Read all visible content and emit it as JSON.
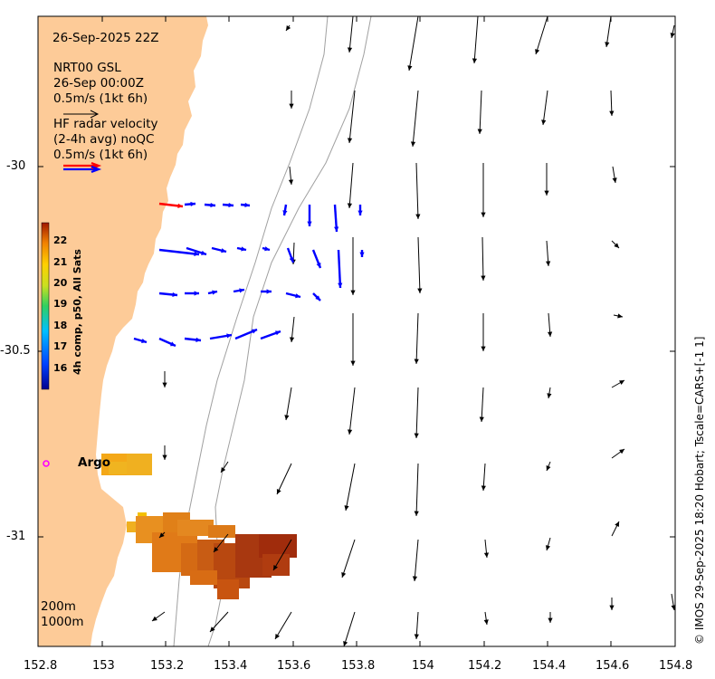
{
  "map": {
    "lon_range": [
      152.8,
      154.8
    ],
    "lat_range": [
      -31.3,
      -29.6
    ],
    "lon_ticks": [
      "152.8",
      "153",
      "153.2",
      "153.4",
      "153.6",
      "153.8",
      "154",
      "154.2",
      "154.4",
      "154.6",
      "154.8"
    ],
    "lat_ticks": [
      "-30",
      "-30.5",
      "-31"
    ],
    "land_color": "#fdcb98",
    "isobath_color": "#a0a0a0"
  },
  "annotations": {
    "date": "26-Sep-2025 22Z",
    "model_name": "NRT00 GSL",
    "model_time": "26-Sep 00:00Z",
    "model_scale": "0.5m/s (1kt 6h)",
    "radar_line1": "HF radar velocity",
    "radar_line2": "(2-4h avg) noQC",
    "radar_scale": "0.5m/s (1kt 6h)",
    "depth_200": "200m",
    "depth_1000": "1000m"
  },
  "argo": {
    "label": "Argo",
    "color": "#ff00ff"
  },
  "colorbar": {
    "label": "4h comp, p50, All Sats",
    "ticks": [
      "22",
      "21",
      "20",
      "19",
      "18",
      "17",
      "16"
    ]
  },
  "credit": "© IMOS 29-Sep-2025 18:20 Hobart; Tscale=CARS+[-1 1]",
  "colors": {
    "model_vector": "#000000",
    "radar_vector": "#0000ff",
    "radar_red_vector": "#ff0000"
  }
}
